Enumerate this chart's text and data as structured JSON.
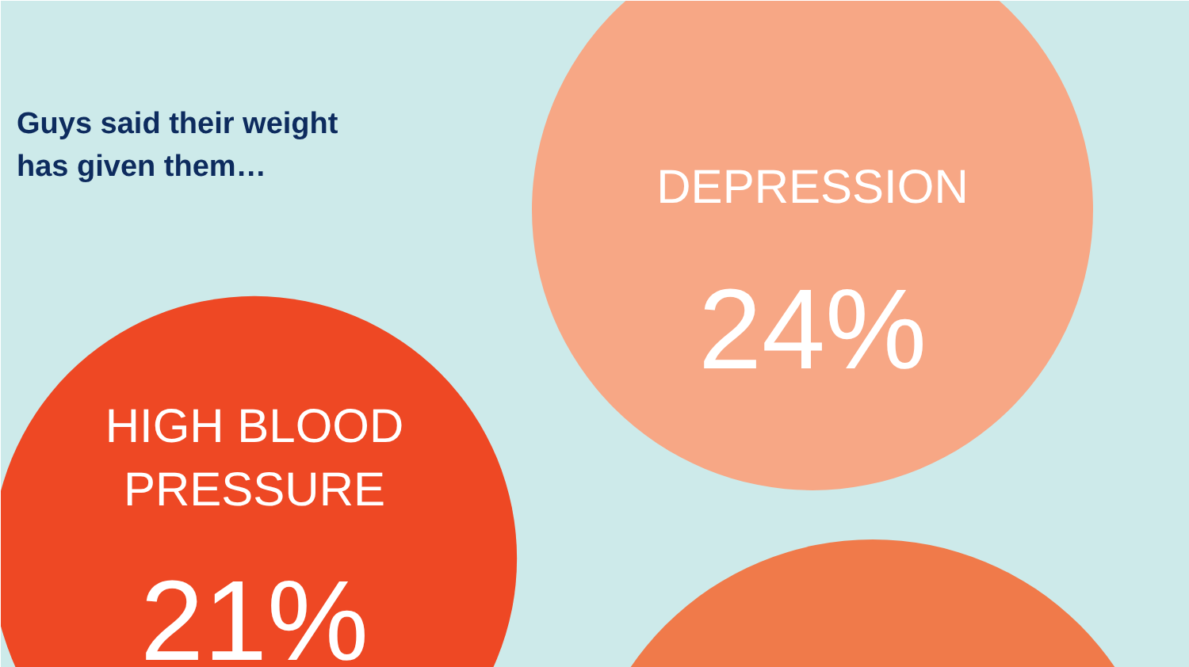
{
  "chart_data": {
    "type": "other",
    "title": "Guys said their weight has given them…",
    "categories": [
      "DEPRESSION",
      "HIGH BLOOD PRESSURE"
    ],
    "values": [
      24,
      21
    ],
    "value_labels": [
      "24%",
      "21%"
    ],
    "colors": [
      "#f7a785",
      "#ee4824"
    ]
  }
}
